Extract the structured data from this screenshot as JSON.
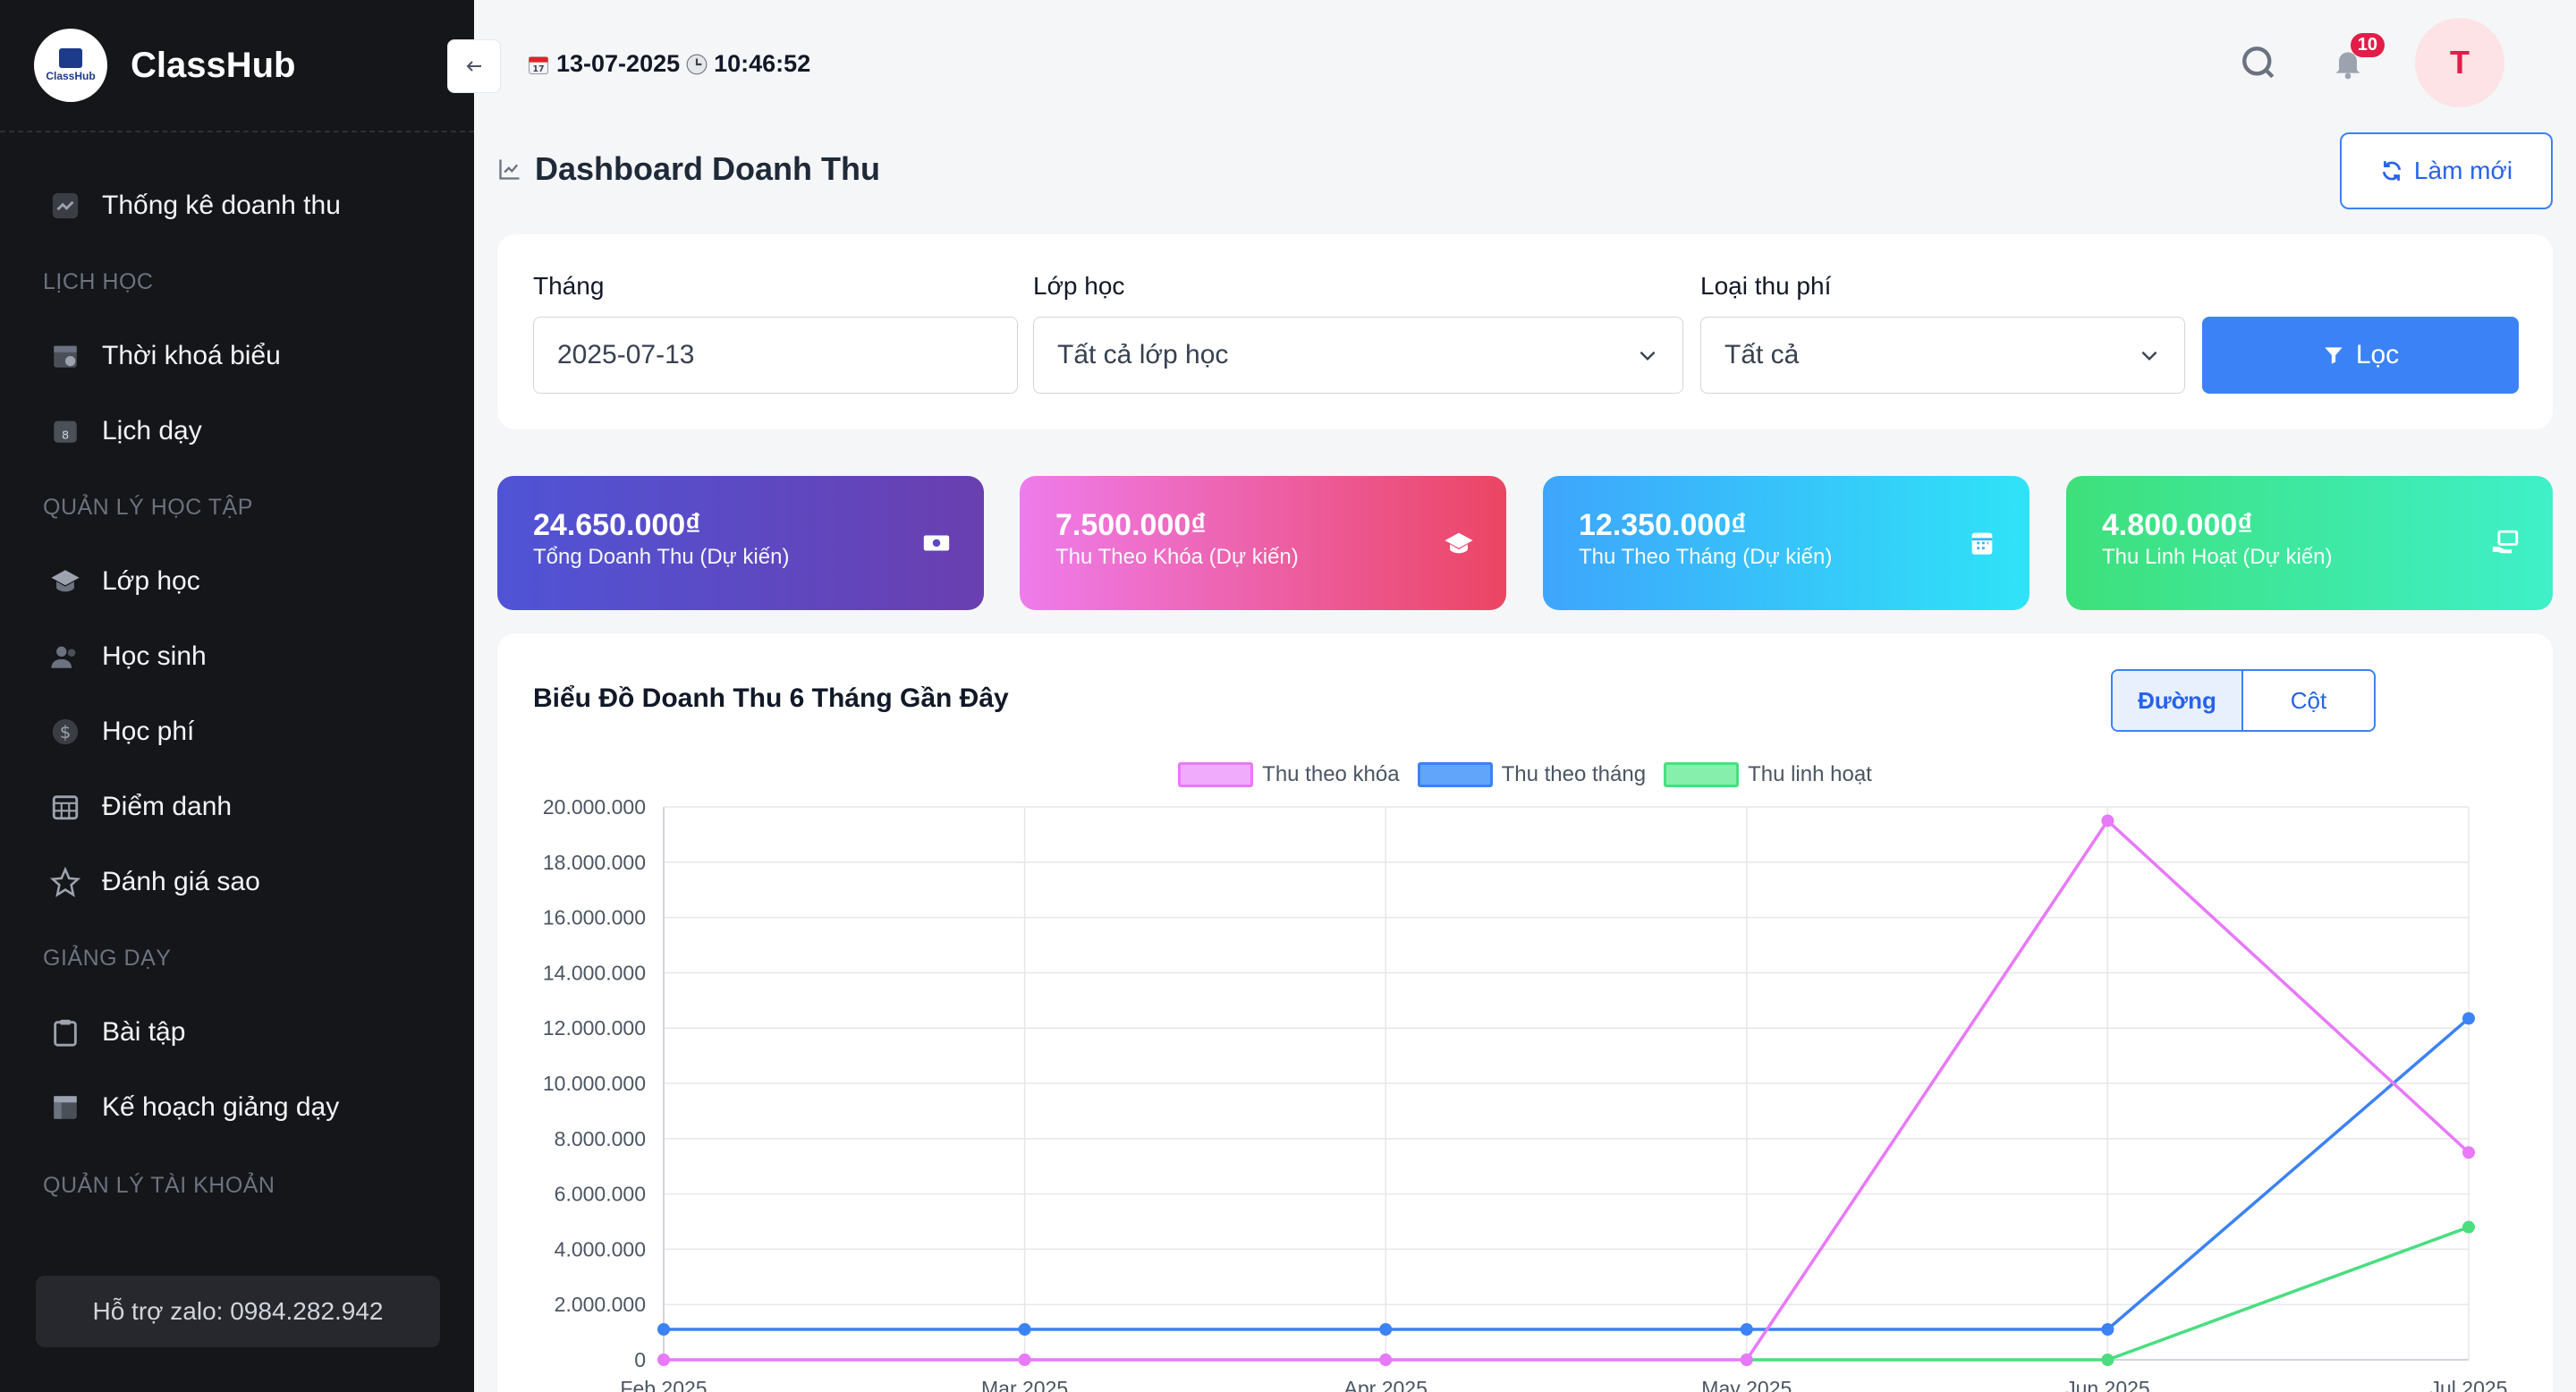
{
  "app": {
    "name": "ClassHub",
    "logo_text": "ClassHub"
  },
  "sidebar": {
    "top_item": "Thống kê doanh thu",
    "sections": [
      {
        "title": "LỊCH HỌC",
        "items": [
          "Thời khoá biểu",
          "Lịch dạy"
        ]
      },
      {
        "title": "QUẢN LÝ HỌC TẬP",
        "items": [
          "Lớp học",
          "Học sinh",
          "Học phí",
          "Điểm danh",
          "Đánh giá sao"
        ]
      },
      {
        "title": "GIẢNG DẠY",
        "items": [
          "Bài tập",
          "Kế hoạch giảng dạy"
        ]
      }
    ],
    "cut_section": "QUẢN LÝ TÀI KHOẢN",
    "support": "Hỗ trợ zalo: 0984.282.942"
  },
  "topbar": {
    "date": "13-07-2025",
    "time": "10:46:52",
    "notification_count": "10",
    "avatar_letter": "T"
  },
  "page": {
    "title": "Dashboard Doanh Thu",
    "refresh_label": "Làm mới"
  },
  "filters": {
    "month_label": "Tháng",
    "month_value": "2025-07-13",
    "class_label": "Lớp học",
    "class_value": "Tất cả lớp học",
    "fee_type_label": "Loại thu phí",
    "fee_type_value": "Tất cả",
    "filter_button": "Lọc"
  },
  "stats": [
    {
      "value": "24.650.000₫",
      "label": "Tổng Doanh Thu (Dự kiến)",
      "icon": "money-icon"
    },
    {
      "value": "7.500.000₫",
      "label": "Thu Theo Khóa (Dự kiến)",
      "icon": "graduation-cap-icon"
    },
    {
      "value": "12.350.000₫",
      "label": "Thu Theo Tháng (Dự kiến)",
      "icon": "calendar-icon"
    },
    {
      "value": "4.800.000₫",
      "label": "Thu Linh Hoạt (Dự kiến)",
      "icon": "hand-coin-icon"
    }
  ],
  "chart_card": {
    "title": "Biểu Đồ Doanh Thu 6 Tháng Gần Đây",
    "toggle_line": "Đường",
    "toggle_bar": "Cột"
  },
  "colors": {
    "sidebar_bg": "#151619",
    "accent": "#3b82f6",
    "series_course": "#e879f9",
    "series_month": "#3b82f6",
    "series_flex": "#4ade80"
  },
  "chart_data": {
    "type": "line",
    "categories": [
      "Feb 2025",
      "Mar 2025",
      "Apr 2025",
      "May 2025",
      "Jun 2025",
      "Jul 2025"
    ],
    "x_positions": [
      "2025-02-01",
      "2025-03-01",
      "2025-04-01",
      "2025-05-01",
      "2025-06-01",
      "2025-07-01"
    ],
    "series": [
      {
        "name": "Thu theo khóa",
        "values": [
          0,
          0,
          0,
          0,
          19500000,
          7500000
        ]
      },
      {
        "name": "Thu theo tháng",
        "values": [
          1100000,
          1100000,
          1100000,
          1100000,
          1100000,
          12350000
        ]
      },
      {
        "name": "Thu linh hoạt",
        "values": [
          null,
          null,
          null,
          0,
          0,
          4800000
        ]
      }
    ],
    "y_ticks": [
      "0",
      "2.000.000",
      "4.000.000",
      "6.000.000",
      "8.000.000",
      "10.000.000",
      "12.000.000",
      "14.000.000",
      "16.000.000",
      "18.000.000",
      "20.000.000"
    ],
    "ylim": [
      0,
      20000000
    ],
    "grid": true,
    "legend": "top-center"
  }
}
